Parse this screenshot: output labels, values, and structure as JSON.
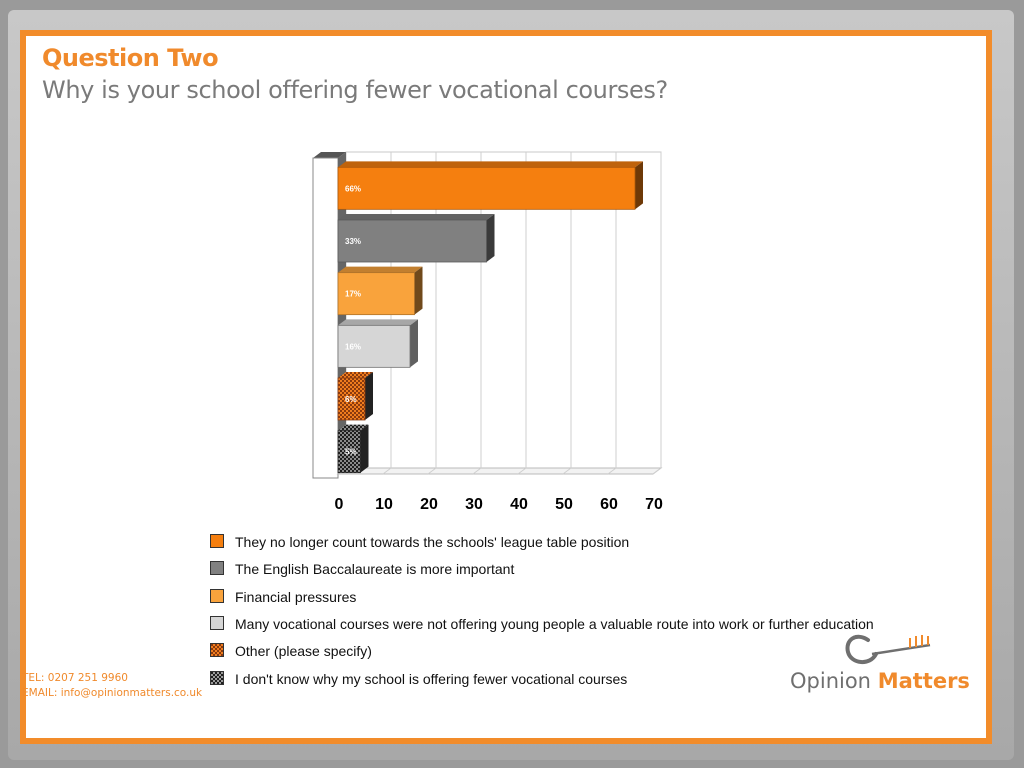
{
  "header": {
    "question_label": "Question Two",
    "question_text": "Why is your school offering fewer vocational courses?"
  },
  "chart_data": {
    "type": "bar",
    "orientation": "horizontal",
    "title": "",
    "xlabel": "",
    "ylabel": "",
    "xlim": [
      0,
      70
    ],
    "x_ticks": [
      0,
      10,
      20,
      30,
      40,
      50,
      60,
      70
    ],
    "grid": true,
    "legend_position": "bottom",
    "series": [
      {
        "name": "They no longer count towards the schools' league table position",
        "value": 66,
        "label": "66%",
        "color": "#f57f0f",
        "pattern": "solid"
      },
      {
        "name": "The English Baccalaureate is more important",
        "value": 33,
        "label": "33%",
        "color": "#808080",
        "pattern": "solid"
      },
      {
        "name": "Financial pressures",
        "value": 17,
        "label": "17%",
        "color": "#f9a33c",
        "pattern": "solid"
      },
      {
        "name": "Many vocational courses were not offering young people a valuable route into work or further education",
        "value": 16,
        "label": "16%",
        "color": "#d6d6d6",
        "pattern": "solid"
      },
      {
        "name": "Other (please specify)",
        "value": 6,
        "label": "6%",
        "color": "#c4561a",
        "pattern": "checker"
      },
      {
        "name": "I don't know why my school is offering fewer vocational courses",
        "value": 5,
        "label": "5%",
        "color": "#3a3a3a",
        "pattern": "checker"
      }
    ]
  },
  "footer": {
    "tel": "TEL: 0207 251 9960",
    "email": "EMAIL: info@opinionmatters.co.uk"
  },
  "logo": {
    "word1": "Opinion",
    "word2": "Matters",
    "icon": "key-icon",
    "colors": {
      "primary": "#6f6f6f",
      "accent": "#f08a2c"
    }
  }
}
